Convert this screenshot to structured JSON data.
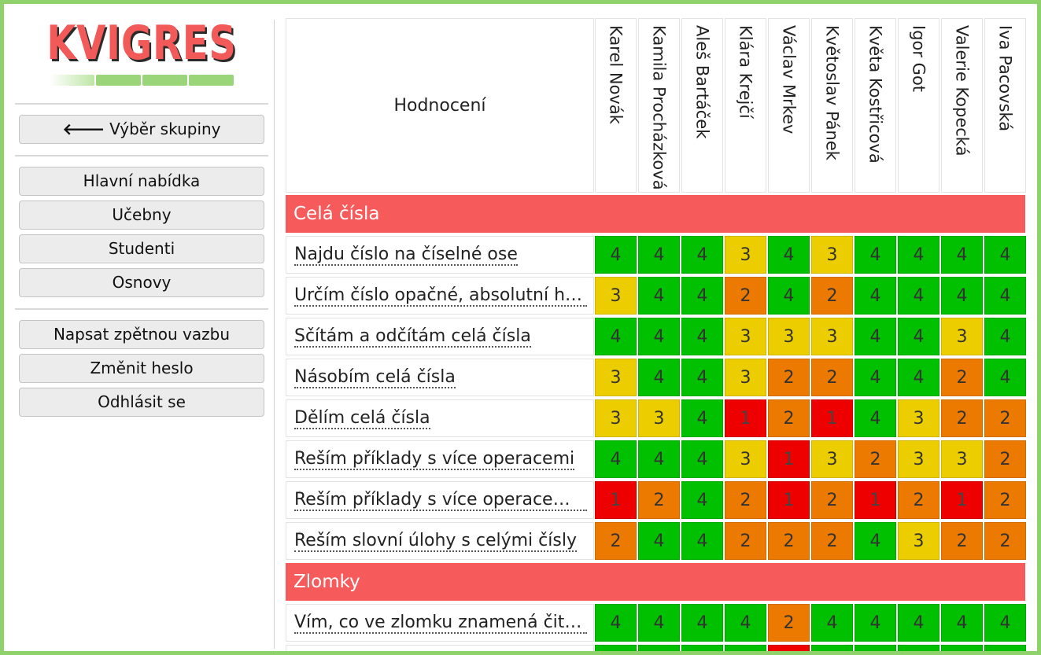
{
  "app": {
    "logo_text": "KVIGRES"
  },
  "sidebar": {
    "back_button": {
      "arrow": "🡐",
      "label": "Výběr skupiny"
    },
    "nav": [
      {
        "id": "main-menu",
        "label": "Hlavní nabídka"
      },
      {
        "id": "classrooms",
        "label": "Učebny"
      },
      {
        "id": "students",
        "label": "Studenti"
      },
      {
        "id": "curricula",
        "label": "Osnovy"
      }
    ],
    "account": [
      {
        "id": "feedback",
        "label": "Napsat zpětnou vazbu"
      },
      {
        "id": "change-password",
        "label": "Změnit heslo"
      },
      {
        "id": "logout",
        "label": "Odhlásit se"
      }
    ]
  },
  "table": {
    "header_title": "Hodnocení",
    "students": [
      "Karel Novák",
      "Kamila Procházková",
      "Aleš Bartáček",
      "Klára Krejčí",
      "Václav Mrkev",
      "Květoslav Pánek",
      "Květa Kostřicová",
      "Igor Got",
      "Valerie Kopecká",
      "Iva Pacovská"
    ],
    "grade_colors": {
      "4": "#00c000",
      "3": "#eccd00",
      "2": "#ec7a00",
      "1": "#ee0000"
    },
    "sections": [
      {
        "title": "Celá čísla",
        "rows": [
          {
            "label": "Najdu číslo na číselné ose",
            "grades": [
              4,
              4,
              4,
              3,
              4,
              3,
              4,
              4,
              4,
              4
            ]
          },
          {
            "label": "Určím číslo opačné, absolutní hodnotu",
            "grades": [
              3,
              4,
              4,
              2,
              4,
              2,
              4,
              4,
              4,
              4
            ]
          },
          {
            "label": "Sčítám a odčítám celá čísla",
            "grades": [
              4,
              4,
              4,
              3,
              3,
              3,
              4,
              4,
              3,
              4
            ]
          },
          {
            "label": "Násobím celá čísla",
            "grades": [
              3,
              4,
              4,
              3,
              2,
              2,
              4,
              4,
              2,
              4
            ]
          },
          {
            "label": "Dělím celá čísla",
            "grades": [
              3,
              3,
              4,
              1,
              2,
              1,
              4,
              3,
              2,
              2
            ]
          },
          {
            "label": "Řeším příklady s více operacemi",
            "grades": [
              4,
              4,
              4,
              3,
              1,
              3,
              2,
              3,
              3,
              2
            ]
          },
          {
            "label": "Řeším příklady s více operacemi a závorkami",
            "grades": [
              1,
              2,
              4,
              2,
              1,
              2,
              1,
              2,
              1,
              2
            ]
          },
          {
            "label": "Řeším slovní úlohy s celými čísly",
            "grades": [
              2,
              4,
              4,
              2,
              2,
              2,
              4,
              3,
              2,
              2
            ]
          }
        ]
      },
      {
        "title": "Zlomky",
        "rows": [
          {
            "label": "Vím, co ve zlomku znamená čitatel a jmenovatel",
            "grades": [
              4,
              4,
              4,
              4,
              2,
              4,
              4,
              4,
              4,
              4
            ]
          },
          {
            "label": "",
            "grades": [
              4,
              4,
              4,
              4,
              1,
              4,
              4,
              4,
              4,
              4
            ]
          }
        ]
      }
    ]
  }
}
